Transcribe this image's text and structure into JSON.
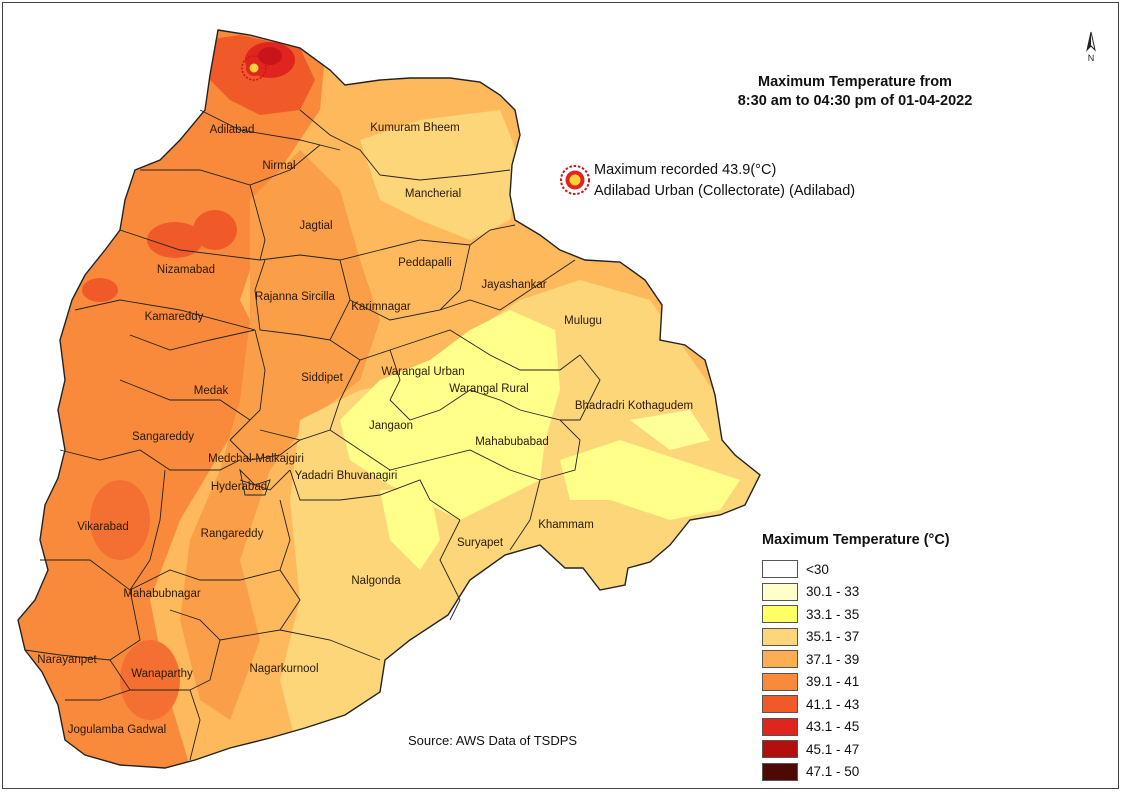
{
  "title": {
    "line1": "Maximum Temperature from",
    "line2": "8:30 am to 04:30 pm of  01-04-2022"
  },
  "max_note": {
    "line1": "Maximum recorded 43.9(°C)",
    "line2": "Adilabad Urban (Collectorate) (Adilabad)",
    "marker_icon": "sun-marker-icon"
  },
  "north_arrow": {
    "label": "N",
    "icon": "north-arrow-icon"
  },
  "legend": {
    "title": "Maximum Temperature (°C)",
    "items": [
      {
        "label": "<30",
        "color": "#ffffff"
      },
      {
        "label": "30.1 - 33",
        "color": "#ffffcc"
      },
      {
        "label": "33.1 - 35",
        "color": "#ffff66"
      },
      {
        "label": "35.1 - 37",
        "color": "#fdd67a"
      },
      {
        "label": "37.1 - 39",
        "color": "#fdae53"
      },
      {
        "label": "39.1 - 41",
        "color": "#f98a3c"
      },
      {
        "label": "41.1 - 43",
        "color": "#f05a28"
      },
      {
        "label": "43.1 - 45",
        "color": "#e0251f"
      },
      {
        "label": "45.1 - 47",
        "color": "#b40f0f"
      },
      {
        "label": "47.1 - 50",
        "color": "#4d0a05"
      }
    ]
  },
  "source": "Source: AWS Data of TSDPS",
  "districts": [
    {
      "name": "Adilabad"
    },
    {
      "name": "Kumuram Bheem"
    },
    {
      "name": "Nirmal"
    },
    {
      "name": "Mancherial"
    },
    {
      "name": "Jagtial"
    },
    {
      "name": "Nizamabad"
    },
    {
      "name": "Peddapalli"
    },
    {
      "name": "Jayashankar"
    },
    {
      "name": "Rajanna Sircilla"
    },
    {
      "name": "Karimnagar"
    },
    {
      "name": "Kamareddy"
    },
    {
      "name": "Mulugu"
    },
    {
      "name": "Siddipet"
    },
    {
      "name": "Warangal Urban"
    },
    {
      "name": "Warangal Rural"
    },
    {
      "name": "Medak"
    },
    {
      "name": "Bhadradri Kothagudem"
    },
    {
      "name": "Jangaon"
    },
    {
      "name": "Mahabubabad"
    },
    {
      "name": "Sangareddy"
    },
    {
      "name": "Medchal-Malkajgiri"
    },
    {
      "name": "Yadadri Bhuvanagiri"
    },
    {
      "name": "Hyderabad"
    },
    {
      "name": "Vikarabad"
    },
    {
      "name": "Rangareddy"
    },
    {
      "name": "Khammam"
    },
    {
      "name": "Suryapet"
    },
    {
      "name": "Nalgonda"
    },
    {
      "name": "Mahabubnagar"
    },
    {
      "name": "Narayanpet"
    },
    {
      "name": "Wanaparthy"
    },
    {
      "name": "Nagarkurnool"
    },
    {
      "name": "Jogulamba Gadwal"
    }
  ]
}
